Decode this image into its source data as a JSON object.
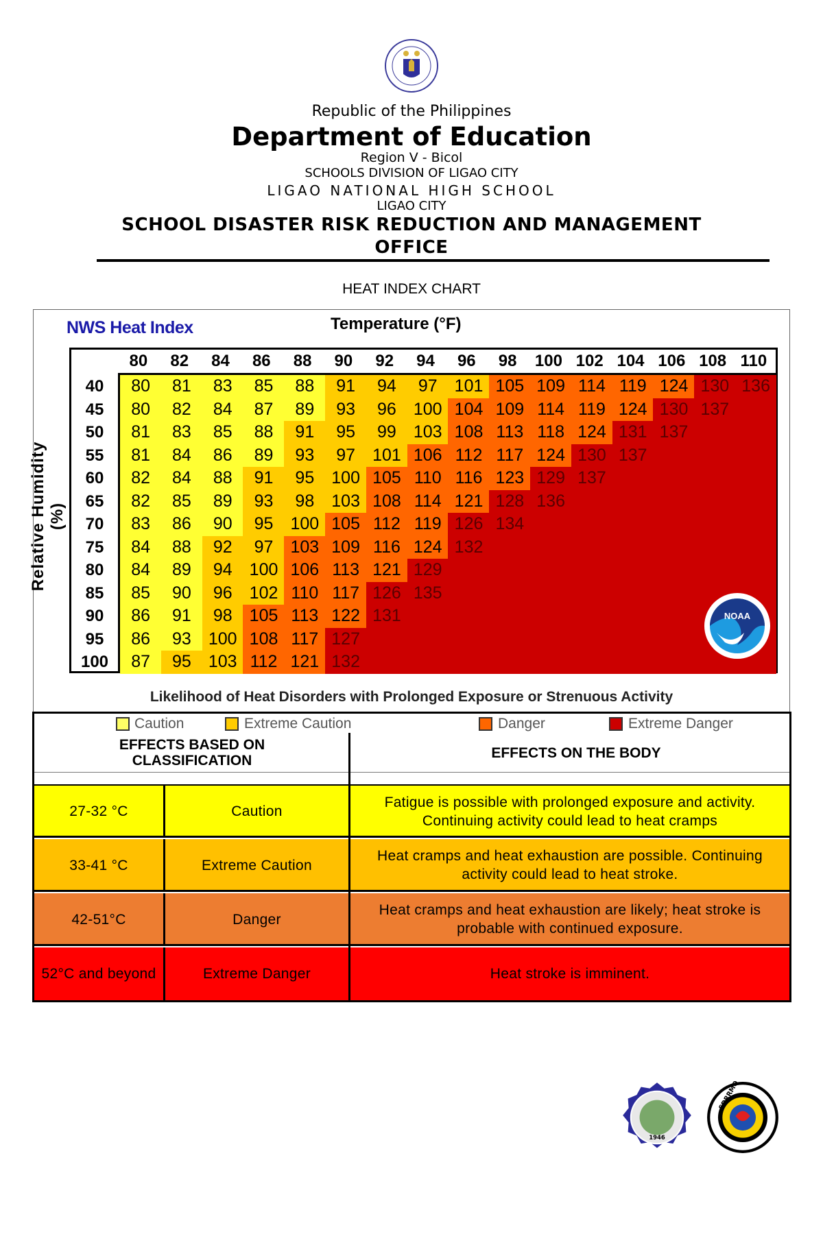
{
  "header": {
    "republic": "Republic of the Philippines",
    "department": "Department of Education",
    "region": "Region V - Bicol",
    "division": "SCHOOLS DIVISION OF LIGAO CITY",
    "school": "LIGAO NATIONAL HIGH SCHOOL",
    "city": "LIGAO CITY",
    "office_line1": "SCHOOL DISASTER RISK REDUCTION AND MANAGEMENT",
    "office_line2": "OFFICE",
    "seal_text": "KAGAWARAN NG EDUKASYON"
  },
  "chart_heading": "HEAT INDEX CHART",
  "chart_data": {
    "type": "heatmap",
    "title": "NWS Heat Index",
    "xlabel": "Temperature (°F)",
    "xlabel_main": "Temperature (",
    "xlabel_unit": "F)",
    "ylabel": "Relative Humidity (%)",
    "caption": "Likelihood of Heat Disorders with Prolonged Exposure or Strenuous Activity",
    "x": [
      80,
      82,
      84,
      86,
      88,
      90,
      92,
      94,
      96,
      98,
      100,
      102,
      104,
      106,
      108,
      110
    ],
    "y": [
      40,
      45,
      50,
      55,
      60,
      65,
      70,
      75,
      80,
      85,
      90,
      95,
      100
    ],
    "values": [
      [
        80,
        81,
        83,
        85,
        88,
        91,
        94,
        97,
        101,
        105,
        109,
        114,
        119,
        124,
        130,
        136
      ],
      [
        80,
        82,
        84,
        87,
        89,
        93,
        96,
        100,
        104,
        109,
        114,
        119,
        124,
        130,
        137,
        null
      ],
      [
        81,
        83,
        85,
        88,
        91,
        95,
        99,
        103,
        108,
        113,
        118,
        124,
        131,
        137,
        null,
        null
      ],
      [
        81,
        84,
        86,
        89,
        93,
        97,
        101,
        106,
        112,
        117,
        124,
        130,
        137,
        null,
        null,
        null
      ],
      [
        82,
        84,
        88,
        91,
        95,
        100,
        105,
        110,
        116,
        123,
        129,
        137,
        null,
        null,
        null,
        null
      ],
      [
        82,
        85,
        89,
        93,
        98,
        103,
        108,
        114,
        121,
        128,
        136,
        null,
        null,
        null,
        null,
        null
      ],
      [
        83,
        86,
        90,
        95,
        100,
        105,
        112,
        119,
        126,
        134,
        null,
        null,
        null,
        null,
        null,
        null
      ],
      [
        84,
        88,
        92,
        97,
        103,
        109,
        116,
        124,
        132,
        null,
        null,
        null,
        null,
        null,
        null,
        null
      ],
      [
        84,
        89,
        94,
        100,
        106,
        113,
        121,
        129,
        null,
        null,
        null,
        null,
        null,
        null,
        null,
        null
      ],
      [
        85,
        90,
        96,
        102,
        110,
        117,
        126,
        135,
        null,
        null,
        null,
        null,
        null,
        null,
        null,
        null
      ],
      [
        86,
        91,
        98,
        105,
        113,
        122,
        131,
        null,
        null,
        null,
        null,
        null,
        null,
        null,
        null,
        null
      ],
      [
        86,
        93,
        100,
        108,
        117,
        127,
        null,
        null,
        null,
        null,
        null,
        null,
        null,
        null,
        null,
        null
      ],
      [
        87,
        95,
        103,
        112,
        121,
        132,
        null,
        null,
        null,
        null,
        null,
        null,
        null,
        null,
        null,
        null
      ]
    ],
    "zones": [
      "YYYYYGGGGOOOOORR",
      "YYYYYGGGOOOOORRR",
      "YYYYGGGGOOOORRRR",
      "YYYYGGGOOOORRRRR",
      "YYYGGGOOOORRRRRR",
      "YYYGGGOOORRRRRRR",
      "YYYGGOOORRRRRRRR",
      "YYGGOOOORRRRRRRR",
      "YYGGOOORRRRRRRRR",
      "YYGGOORRRRRRRRRR",
      "YYGOOORRRRRRRRRR",
      "YYGOORRRRRRRRRRR",
      "YGGOORRRRRRRRRRR"
    ],
    "zone_colors": {
      "Y": "#ffff33",
      "G": "#ffcc00",
      "O": "#ff6600",
      "R": "#cc0000"
    },
    "legend": [
      {
        "label": "Caution",
        "color": "#ffff66"
      },
      {
        "label": "Extreme Caution",
        "color": "#ffcc00"
      },
      {
        "label": "Danger",
        "color": "#ff6600"
      },
      {
        "label": "Extreme Danger",
        "color": "#cc0000"
      }
    ],
    "logo_text": "NOAA"
  },
  "classification_table": {
    "header_classification": "EFFECTS BASED ON CLASSIFICATION",
    "header_effects": "EFFECTS ON THE BODY",
    "rows": [
      {
        "range": "27-32 °C",
        "class": "Caution",
        "effect": "Fatigue is possible with prolonged exposure and activity. Continuing activity could lead to heat cramps",
        "color": "#ffff00"
      },
      {
        "range": "33-41 °C",
        "class": "Extreme Caution",
        "effect": "Heat cramps and heat exhaustion are possible. Continuing activity could lead to heat stroke.",
        "color": "#ffc000"
      },
      {
        "range": "42-51°C",
        "class": "Danger",
        "effect": "Heat cramps and heat exhaustion are likely; heat stroke is probable with continued exposure.",
        "color": "#ed7d31"
      },
      {
        "range": "52°C and beyond",
        "class": "Extreme Danger",
        "effect": "Heat stroke is imminent.",
        "color": "#ff0000"
      }
    ]
  },
  "footer_logos": [
    {
      "name": "Ligao National High School seal",
      "text": "1946"
    },
    {
      "name": "SDRRMO seal",
      "text": "SDRRMO"
    }
  ]
}
